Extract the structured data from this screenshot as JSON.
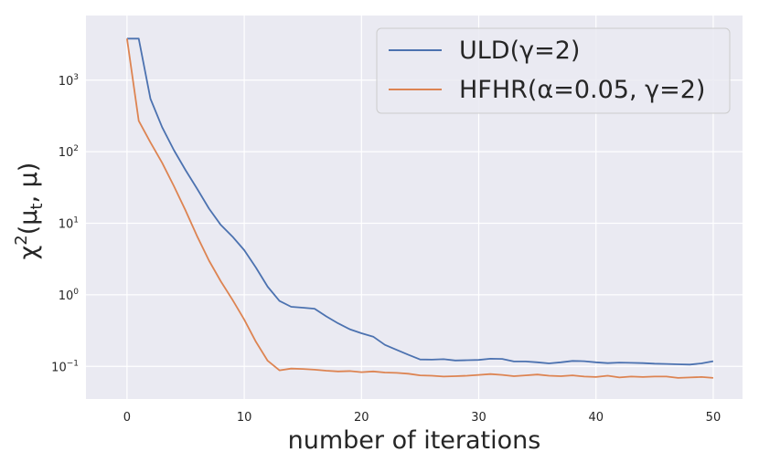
{
  "chart_data": {
    "type": "line",
    "xlabel": "number of iterations",
    "ylabel_base": "χ",
    "ylabel_sup": "2",
    "ylabel_args": "(μ",
    "ylabel_sub": "t",
    "ylabel_end": ", μ)",
    "yscale": "log",
    "xlim": [
      -3.5,
      52.5
    ],
    "ylim": [
      0.035,
      8000
    ],
    "xticks": [
      0,
      10,
      20,
      30,
      40,
      50
    ],
    "xtick_labels": [
      "0",
      "10",
      "20",
      "30",
      "40",
      "50"
    ],
    "yticks": [
      {
        "value": 0.1,
        "base": "10",
        "exp": "−1"
      },
      {
        "value": 1,
        "base": "10",
        "exp": "0"
      },
      {
        "value": 10,
        "base": "10",
        "exp": "1"
      },
      {
        "value": 100,
        "base": "10",
        "exp": "2"
      },
      {
        "value": 1000,
        "base": "10",
        "exp": "3"
      }
    ],
    "grid": true,
    "legend_position": "top-right",
    "colors": {
      "background": "#eaeaf2",
      "grid": "#ffffff",
      "series0": "#4c72b0",
      "series1": "#dd8452"
    },
    "x": [
      0,
      1,
      2,
      3,
      4,
      5,
      6,
      7,
      8,
      9,
      10,
      11,
      12,
      13,
      14,
      15,
      16,
      17,
      18,
      19,
      20,
      21,
      22,
      23,
      24,
      25,
      26,
      27,
      28,
      29,
      30,
      31,
      32,
      33,
      34,
      35,
      36,
      37,
      38,
      39,
      40,
      41,
      42,
      43,
      44,
      45,
      46,
      47,
      48,
      49,
      50
    ],
    "series": [
      {
        "name": "ULD(γ=2)",
        "color": "#4c72b0",
        "values": [
          3800,
          3800,
          550,
          220,
          105,
          55,
          30,
          16,
          9.5,
          6.5,
          4.2,
          2.4,
          1.3,
          0.82,
          0.68,
          0.66,
          0.64,
          0.5,
          0.4,
          0.33,
          0.29,
          0.26,
          0.2,
          0.17,
          0.145,
          0.125,
          0.124,
          0.126,
          0.121,
          0.122,
          0.123,
          0.128,
          0.127,
          0.117,
          0.117,
          0.114,
          0.11,
          0.114,
          0.119,
          0.118,
          0.114,
          0.111,
          0.113,
          0.112,
          0.111,
          0.109,
          0.108,
          0.107,
          0.106,
          0.11,
          0.118
        ]
      },
      {
        "name": "HFHR(α=0.05, γ=2)",
        "color": "#dd8452",
        "values": [
          3800,
          270,
          135,
          70,
          33,
          15,
          6.5,
          3.0,
          1.55,
          0.85,
          0.45,
          0.22,
          0.12,
          0.088,
          0.093,
          0.092,
          0.09,
          0.087,
          0.085,
          0.086,
          0.083,
          0.085,
          0.082,
          0.081,
          0.079,
          0.075,
          0.074,
          0.072,
          0.073,
          0.074,
          0.076,
          0.078,
          0.076,
          0.073,
          0.075,
          0.077,
          0.074,
          0.073,
          0.075,
          0.072,
          0.071,
          0.074,
          0.07,
          0.072,
          0.071,
          0.072,
          0.072,
          0.069,
          0.07,
          0.071,
          0.069
        ]
      }
    ]
  }
}
